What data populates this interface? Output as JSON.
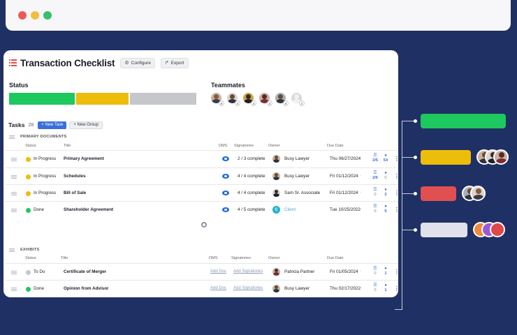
{
  "window": {
    "dots": [
      "#ee5a5a",
      "#f4bd3e",
      "#35c06a"
    ]
  },
  "header": {
    "title": "Transaction Checklist",
    "configure_label": "Configure",
    "export_label": "Export"
  },
  "status": {
    "label": "Status",
    "colors": {
      "green": "#1dc85e",
      "yellow": "#edbd0c",
      "gray": "#c5c7ca"
    }
  },
  "teammates": {
    "label": "Teammates",
    "badges": [
      "8",
      "4",
      "3",
      "3",
      "8",
      "2"
    ]
  },
  "tasks": {
    "label": "Tasks",
    "count": "28",
    "new_task": "+ New Task",
    "new_group": "+ New Group"
  },
  "columns": {
    "status": "Status",
    "title": "Title",
    "dms": "DMS",
    "signatories": "Signatories",
    "owner": "Owner",
    "due_date": "Due Date"
  },
  "groups": [
    {
      "name": "PRIMARY DOCUMENTS",
      "rows": [
        {
          "status": "In Progress",
          "title": "Primary Agreement",
          "signatories": "2 / 3 complete",
          "owner": "Busy Lawyer",
          "due": "Thu 06/27/2024",
          "tasks": "3/5",
          "comments": "54"
        },
        {
          "status": "In Progress",
          "title": "Schedules",
          "signatories": "4 / 4 complete",
          "owner": "Busy Lawyer",
          "due": "Fri 01/12/2024",
          "tasks": "2/6",
          "comments": "0"
        },
        {
          "status": "In Progress",
          "title": "Bill of Sale",
          "signatories": "4 / 4 complete",
          "owner": "Sam Sr. Associate",
          "due": "Fri 01/12/2024",
          "tasks": "0",
          "comments": "2"
        },
        {
          "status": "Done",
          "title": "Shareholder Agreement",
          "signatories": "4 / 5 complete",
          "owner": "Client",
          "owner_initial": "C",
          "due": "Tue 10/25/2022",
          "tasks": "0",
          "comments": "5"
        }
      ]
    },
    {
      "name": "EXHIBITS",
      "rows": [
        {
          "status": "To Do",
          "title": "Certificate of Merger",
          "dms": "Add Doc",
          "signatories": "Add Signatories",
          "owner": "Patricia Partner",
          "due": "Fri 01/05/2024",
          "tasks": "0",
          "comments": "1"
        },
        {
          "status": "Done",
          "title": "Opinion from Advisor",
          "dms": "Add Doc",
          "signatories": "Add Signatories",
          "owner": "Busy Lawyer",
          "due": "Thu 02/17/2022",
          "tasks": "0",
          "comments": "1"
        }
      ]
    }
  ],
  "legend": {
    "colors": [
      "#1dc85e",
      "#edbd0c",
      "#e05050",
      "#dfe2ea"
    ]
  }
}
